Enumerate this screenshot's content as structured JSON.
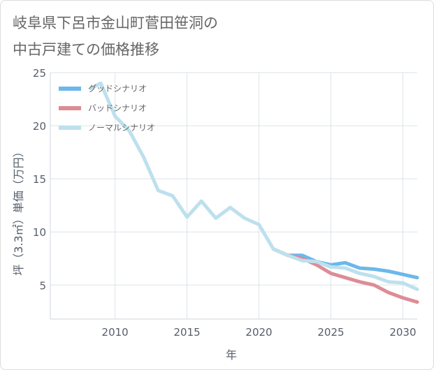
{
  "title_lines": [
    "岐阜県下呂市金山町菅田笹洞の",
    "中古戸建ての価格推移"
  ],
  "chart_data": {
    "type": "line",
    "title": "岐阜県下呂市金山町菅田笹洞の中古戸建ての価格推移",
    "xlabel": "年",
    "ylabel": "坪（3.3㎡）単価（万円）",
    "xlim": [
      2005.5,
      2031
    ],
    "ylim": [
      1.8,
      25
    ],
    "xticks": [
      2010,
      2015,
      2020,
      2025,
      2030
    ],
    "yticks": [
      5,
      10,
      15,
      20,
      25
    ],
    "grid": true,
    "legend_position": "top-left",
    "series": [
      {
        "name": "グッドシナリオ",
        "color": "#6cb8ea",
        "x": [
          2021,
          2022,
          2023,
          2024,
          2025,
          2026,
          2027,
          2028,
          2029,
          2030,
          2031
        ],
        "y": [
          8.4,
          7.8,
          7.8,
          7.2,
          6.9,
          7.1,
          6.6,
          6.5,
          6.3,
          6.0,
          5.7
        ]
      },
      {
        "name": "バッドシナリオ",
        "color": "#dd8c95",
        "x": [
          2021,
          2022,
          2023,
          2024,
          2025,
          2026,
          2027,
          2028,
          2029,
          2030,
          2031
        ],
        "y": [
          8.4,
          7.8,
          7.5,
          6.9,
          6.1,
          5.7,
          5.3,
          5.0,
          4.3,
          3.8,
          3.4
        ]
      },
      {
        "name": "ノーマルシナリオ",
        "color": "#bde0ee",
        "x": [
          2008.3,
          2009,
          2010,
          2011,
          2012,
          2013,
          2014,
          2015,
          2016,
          2017,
          2018,
          2019,
          2020,
          2021,
          2022,
          2023,
          2024,
          2025,
          2026,
          2027,
          2028,
          2029,
          2030,
          2031
        ],
        "y": [
          23.5,
          24.0,
          20.9,
          19.5,
          17.0,
          13.9,
          13.4,
          11.4,
          12.9,
          11.3,
          12.3,
          11.3,
          10.7,
          8.4,
          7.8,
          7.3,
          7.2,
          6.7,
          6.6,
          6.1,
          5.8,
          5.3,
          5.2,
          4.6
        ]
      }
    ]
  }
}
